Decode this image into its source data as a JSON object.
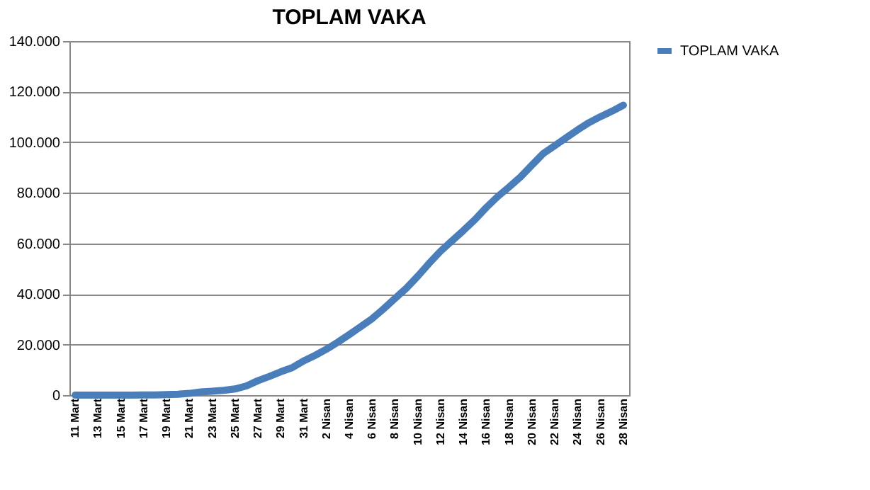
{
  "chart_data": {
    "type": "line",
    "title": "TOPLAM VAKA",
    "categories": [
      "11 Mart",
      null,
      "13 Mart",
      null,
      "15 Mart",
      null,
      "17 Mart",
      null,
      "19 Mart",
      null,
      "21 Mart",
      null,
      "23 Mart",
      null,
      "25 Mart",
      null,
      "27 Mart",
      null,
      "29 Mart",
      null,
      "31 Mart",
      null,
      "2 Nisan",
      null,
      "4 Nisan",
      null,
      "6 Nisan",
      null,
      "8 Nisan",
      null,
      "10 Nisan",
      null,
      "12 Nisan",
      null,
      "14 Nisan",
      null,
      "16 Nisan",
      null,
      "18 Nisan",
      null,
      "20 Nisan",
      null,
      "22 Nisan",
      null,
      "24 Nisan",
      null,
      "26 Nisan",
      null,
      "28 Nisan"
    ],
    "series": [
      {
        "name": "TOPLAM VAKA",
        "color": "#4a7ebb",
        "values": [
          1,
          1,
          5,
          5,
          6,
          18,
          47,
          98,
          191,
          359,
          670,
          1236,
          1529,
          1872,
          2433,
          3629,
          5698,
          7402,
          9217,
          10827,
          13531,
          15679,
          18135,
          20921,
          23934,
          27069,
          30217,
          34109,
          38226,
          42282,
          47029,
          52167,
          56956,
          61049,
          65111,
          69392,
          74193,
          78546,
          82329,
          86306,
          90980,
          95591,
          98674,
          101790,
          104912,
          107773,
          110130,
          112261,
          114653
        ]
      }
    ],
    "ylim": [
      0,
      140000
    ],
    "yticks": [
      0,
      {
        "value": 20000,
        "label": "20.000"
      },
      {
        "value": 40000,
        "label": "40.000"
      },
      {
        "value": 60000,
        "label": "60.000"
      },
      {
        "value": 80000,
        "label": "80.000"
      },
      {
        "value": 100000,
        "label": "100.000"
      },
      {
        "value": 120000,
        "label": "120.000"
      },
      {
        "value": 140000,
        "label": "140.000"
      }
    ],
    "grid": "y",
    "legend": "right",
    "marker": "none",
    "line_style": "solid"
  }
}
